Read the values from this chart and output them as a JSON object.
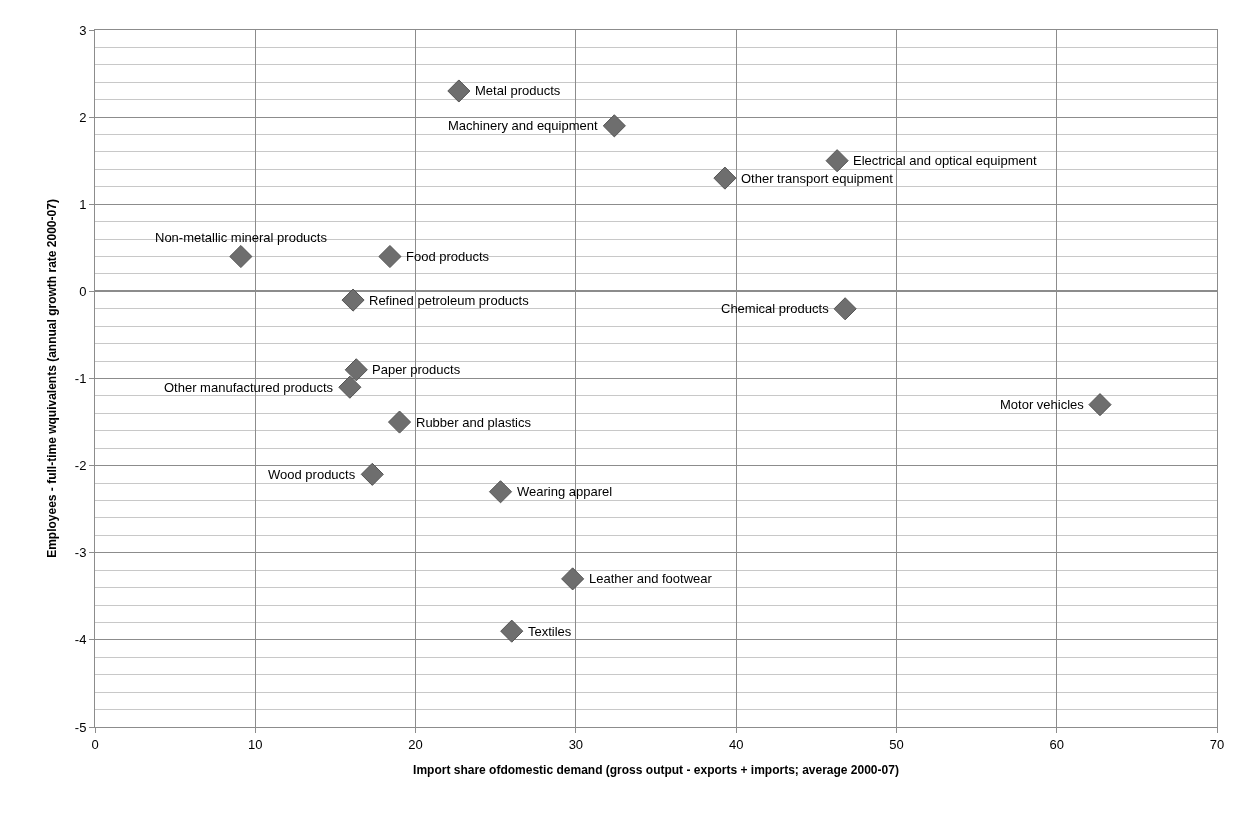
{
  "chart_data": {
    "type": "scatter",
    "xlabel": "Import share ofdomestic demand (gross output - exports + imports; average 2000-07)",
    "ylabel": "Employees - full-time wquivalents (annual growth rate 2000-07)",
    "x": [
      22.7,
      32.4,
      46.3,
      39.3,
      9.1,
      18.4,
      16.1,
      46.8,
      16.3,
      15.9,
      62.7,
      19.0,
      17.3,
      25.3,
      29.8,
      26.0
    ],
    "series": [
      {
        "color": "#6e6e6e",
        "values": [
          2.3,
          1.9,
          1.5,
          1.3,
          0.4,
          0.4,
          -0.1,
          -0.2,
          -0.9,
          -1.1,
          -1.3,
          -1.5,
          -2.1,
          -2.3,
          -3.3,
          -3.9
        ]
      }
    ],
    "annotations": [
      {
        "text": "Metal products",
        "x": 22.7,
        "y": 2.3
      },
      {
        "text": "Machinery and equipment",
        "x": 32.4,
        "y": 1.9
      },
      {
        "text": "Electrical and optical equipment",
        "x": 46.3,
        "y": 1.5
      },
      {
        "text": "Other transport equipment",
        "x": 39.3,
        "y": 1.3
      },
      {
        "text": "Non-metallic mineral products",
        "x": 9.1,
        "y": 0.4
      },
      {
        "text": "Food products",
        "x": 18.4,
        "y": 0.4
      },
      {
        "text": "Refined petroleum products",
        "x": 16.1,
        "y": -0.1
      },
      {
        "text": "Chemical products",
        "x": 46.8,
        "y": -0.2
      },
      {
        "text": "Paper products",
        "x": 16.3,
        "y": -0.9
      },
      {
        "text": "Other manufactured products",
        "x": 15.9,
        "y": -1.1
      },
      {
        "text": "Motor vehicles",
        "x": 62.7,
        "y": -1.3
      },
      {
        "text": "Rubber and plastics",
        "x": 19.0,
        "y": -1.5
      },
      {
        "text": "Wood products",
        "x": 17.3,
        "y": -2.1
      },
      {
        "text": "Wearing apparel",
        "x": 25.3,
        "y": -2.3
      },
      {
        "text": "Leather and footwear",
        "x": 29.8,
        "y": -3.3
      },
      {
        "text": "Textiles",
        "x": 26.0,
        "y": -3.9
      }
    ],
    "xlim": [
      0,
      70
    ],
    "xticks": [
      0,
      10,
      20,
      30,
      40,
      50,
      60,
      70
    ],
    "ylim": [
      -5,
      3
    ],
    "yticks": [
      -5,
      -4,
      -3,
      -2,
      -1,
      0,
      1,
      2,
      3
    ],
    "grid": true,
    "marker": "diamond"
  }
}
